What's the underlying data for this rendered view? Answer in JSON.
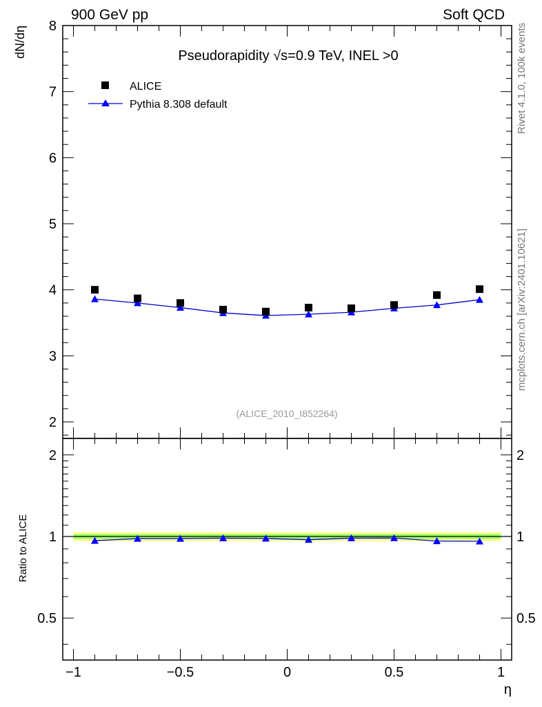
{
  "header": {
    "left_label": "900 GeV pp",
    "right_label": "Soft QCD"
  },
  "side_labels": {
    "rivet": "Rivet 4.1.0,  100k events",
    "mcplots": "mcplots.cern.ch [arXiv:2401.10621]"
  },
  "chart_data": [
    {
      "type": "scatter",
      "panel": "main",
      "title": "Pseudorapidity √s=0.9 TeV, INEL >0",
      "analysis_id": "(ALICE_2010_I852264)",
      "xlabel": "η",
      "ylabel": "dN/dη",
      "xlim": [
        -1.05,
        1.05
      ],
      "ylim": [
        1.75,
        8.0
      ],
      "x": [
        -0.9,
        -0.7,
        -0.5,
        -0.3,
        -0.1,
        0.1,
        0.3,
        0.5,
        0.7,
        0.9
      ],
      "y_ticks": [
        "2",
        "3",
        "4",
        "5",
        "6",
        "7",
        "8"
      ],
      "series": [
        {
          "name": "ALICE",
          "style": "black-square",
          "values": [
            4.0,
            3.87,
            3.8,
            3.7,
            3.67,
            3.73,
            3.72,
            3.77,
            3.92,
            4.01
          ]
        },
        {
          "name": "Pythia 8.308 default",
          "style": "blue-line-triangle",
          "values": [
            3.86,
            3.8,
            3.73,
            3.65,
            3.61,
            3.63,
            3.66,
            3.72,
            3.77,
            3.85
          ]
        }
      ],
      "legend": "top-left",
      "colors": {
        "data": "#000000",
        "mc": "#0000ff",
        "mc_line": "#0000cc"
      }
    },
    {
      "type": "line",
      "panel": "ratio",
      "xlabel": "η",
      "ylabel": "Ratio to ALICE",
      "xlim": [
        -1.05,
        1.05
      ],
      "ylim": [
        0.35,
        2.3
      ],
      "x_ticks": [
        "−1",
        "−0.5",
        "0",
        "0.5",
        "1"
      ],
      "y_ticks": [
        "0.5",
        "1",
        "2"
      ],
      "band": {
        "inner_halfwidth": 0.02,
        "outer_halfwidth": 0.04,
        "colors": {
          "inner": "#99ff66",
          "outer": "#ffff99"
        }
      },
      "series": [
        {
          "name": "Pythia 8.308 default",
          "values": [
            0.965,
            0.982,
            0.982,
            0.986,
            0.983,
            0.973,
            0.986,
            0.987,
            0.962,
            0.96
          ]
        }
      ]
    }
  ]
}
